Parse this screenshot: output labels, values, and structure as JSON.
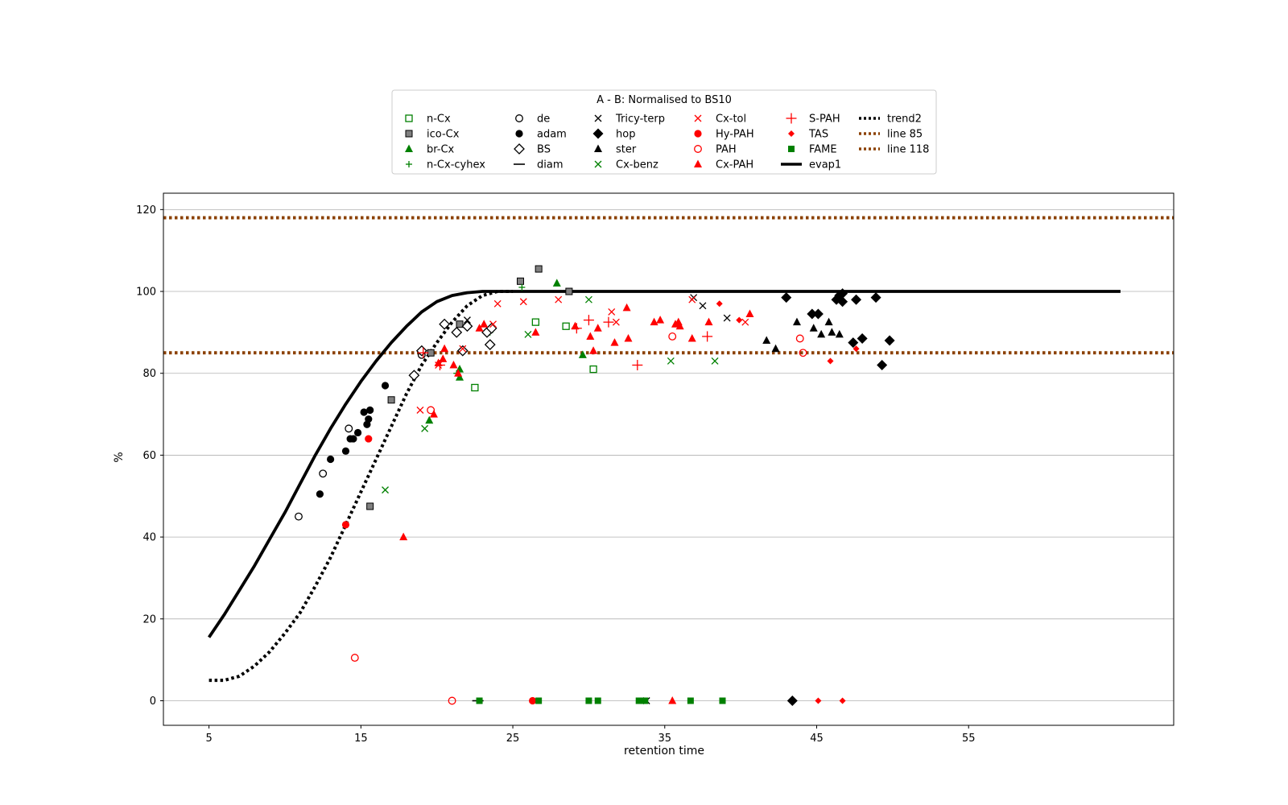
{
  "chart_data": {
    "type": "scatter",
    "title": "",
    "xlabel": "retention time",
    "ylabel": "%",
    "xlim": [
      2,
      68.5
    ],
    "ylim": [
      -6,
      124
    ],
    "x_ticks": [
      5,
      15,
      25,
      35,
      45,
      55
    ],
    "y_ticks": [
      0,
      20,
      40,
      60,
      80,
      100,
      120
    ],
    "y_grid": true,
    "legend": {
      "title": "A - B: Normalised to BS10",
      "placement": "above plot, centered",
      "columns": 6
    },
    "colors": {
      "red": "#ff0000",
      "green": "#008000",
      "black": "#000000",
      "gray": "#808080",
      "brown": "#8b4000"
    },
    "series": [
      {
        "name": "n-Cx",
        "marker": "square-open",
        "color": "#008000",
        "points": [
          [
            22.5,
            76.5
          ],
          [
            26.5,
            92.5
          ],
          [
            28.5,
            91.5
          ],
          [
            30.3,
            81
          ]
        ]
      },
      {
        "name": "ico-Cx",
        "marker": "square-gray",
        "color": "#808080",
        "points": [
          [
            15.6,
            47.5
          ],
          [
            17,
            73.5
          ],
          [
            19.6,
            85
          ],
          [
            21.5,
            92
          ],
          [
            25.5,
            102.5
          ],
          [
            26.7,
            105.5
          ],
          [
            28.7,
            100
          ]
        ]
      },
      {
        "name": "br-Cx",
        "marker": "triangle",
        "color": "#008000",
        "points": [
          [
            19.5,
            68.5
          ],
          [
            21.5,
            79
          ],
          [
            21.5,
            81
          ],
          [
            27.9,
            102
          ],
          [
            29.6,
            84.5
          ]
        ]
      },
      {
        "name": "n-Cx-cyhex",
        "marker": "plus",
        "color": "#008000",
        "points": [
          [
            21.3,
            80
          ],
          [
            23.5,
            90
          ],
          [
            25.6,
            101
          ]
        ]
      },
      {
        "name": "de",
        "marker": "circle-open",
        "color": "#000000",
        "points": [
          [
            10.9,
            45
          ],
          [
            12.5,
            55.5
          ],
          [
            14.2,
            66.5
          ],
          [
            19,
            84.5
          ]
        ]
      },
      {
        "name": "adam",
        "marker": "circle",
        "color": "#000000",
        "points": [
          [
            12.3,
            50.5
          ],
          [
            13,
            59
          ],
          [
            14,
            61
          ],
          [
            14.3,
            64
          ],
          [
            14.5,
            64
          ],
          [
            14.8,
            65.5
          ],
          [
            15.2,
            70.5
          ],
          [
            15.4,
            67.5
          ],
          [
            15.5,
            68.8
          ],
          [
            15.6,
            71
          ],
          [
            16.6,
            77
          ]
        ]
      },
      {
        "name": "BS",
        "marker": "diamond-open",
        "color": "#000000",
        "points": [
          [
            18.5,
            79.5
          ],
          [
            19,
            85.5
          ],
          [
            20.5,
            92
          ],
          [
            21.3,
            90
          ],
          [
            21.7,
            85.5
          ],
          [
            22,
            91.5
          ],
          [
            23.3,
            90
          ],
          [
            23.5,
            87
          ],
          [
            23.6,
            91
          ]
        ]
      },
      {
        "name": "diam",
        "marker": "hline",
        "color": "#000000",
        "points": [
          [
            22.7,
            0
          ]
        ]
      },
      {
        "name": "Tricy-terp",
        "marker": "x",
        "color": "#000000",
        "points": [
          [
            22,
            93
          ],
          [
            36.9,
            98.5
          ],
          [
            37.5,
            96.5
          ],
          [
            39.1,
            93.5
          ],
          [
            33.8,
            0
          ]
        ]
      },
      {
        "name": "hop",
        "marker": "diamond",
        "color": "#000000",
        "points": [
          [
            43,
            98.5
          ],
          [
            44.7,
            94.5
          ],
          [
            45.1,
            94.5
          ],
          [
            46.3,
            98
          ],
          [
            46.5,
            99
          ],
          [
            46.7,
            99.5
          ],
          [
            46.7,
            97.5
          ],
          [
            47.6,
            98
          ],
          [
            47.4,
            87.5
          ],
          [
            48,
            88.5
          ],
          [
            48.9,
            98.5
          ],
          [
            49.3,
            82
          ],
          [
            49.8,
            88
          ],
          [
            43.4,
            0
          ]
        ]
      },
      {
        "name": "ster",
        "marker": "triangle",
        "color": "#000000",
        "points": [
          [
            41.7,
            88
          ],
          [
            42.3,
            86
          ],
          [
            43.7,
            92.5
          ],
          [
            44.8,
            91
          ],
          [
            45.3,
            89.5
          ],
          [
            45.8,
            92.5
          ],
          [
            46,
            90
          ],
          [
            46.5,
            89.5
          ]
        ]
      },
      {
        "name": "Cx-benz",
        "marker": "x",
        "color": "#008000",
        "points": [
          [
            16.6,
            51.5
          ],
          [
            19.2,
            66.5
          ],
          [
            26,
            89.5
          ],
          [
            30,
            98
          ],
          [
            35.4,
            83
          ],
          [
            38.3,
            83
          ]
        ]
      },
      {
        "name": "Cx-tol",
        "marker": "x",
        "color": "#ff0000",
        "points": [
          [
            18.9,
            71
          ],
          [
            20.1,
            82
          ],
          [
            21.7,
            86
          ],
          [
            23.7,
            92
          ],
          [
            24,
            97
          ],
          [
            25.7,
            97.5
          ],
          [
            28,
            98
          ],
          [
            31.5,
            95
          ],
          [
            31.8,
            92.5
          ],
          [
            36.8,
            98
          ],
          [
            40.3,
            92.5
          ]
        ]
      },
      {
        "name": "Hy-PAH",
        "marker": "circle",
        "color": "#ff0000",
        "points": [
          [
            14,
            43
          ],
          [
            15.5,
            64
          ],
          [
            26.3,
            0
          ]
        ]
      },
      {
        "name": "PAH",
        "marker": "circle-open",
        "color": "#ff0000",
        "points": [
          [
            14.6,
            10.5
          ],
          [
            19.6,
            71
          ],
          [
            21,
            0
          ],
          [
            35.5,
            89
          ],
          [
            43.9,
            88.5
          ],
          [
            44.1,
            85
          ]
        ]
      },
      {
        "name": "Cx-PAH",
        "marker": "triangle",
        "color": "#ff0000",
        "points": [
          [
            17.8,
            40
          ],
          [
            19.8,
            70
          ],
          [
            20.1,
            82.5
          ],
          [
            20.4,
            83.5
          ],
          [
            20.5,
            86
          ],
          [
            21.1,
            82
          ],
          [
            21.4,
            80
          ],
          [
            22.8,
            91
          ],
          [
            23.1,
            92
          ],
          [
            26.5,
            90
          ],
          [
            29.1,
            91.5
          ],
          [
            30.1,
            89
          ],
          [
            30.3,
            85.5
          ],
          [
            30.6,
            91
          ],
          [
            31.7,
            87.5
          ],
          [
            32.5,
            96
          ],
          [
            32.6,
            88.5
          ],
          [
            34.3,
            92.5
          ],
          [
            34.7,
            93
          ],
          [
            35.7,
            92
          ],
          [
            35.9,
            92.5
          ],
          [
            36,
            91.5
          ],
          [
            36.8,
            88.5
          ],
          [
            37.9,
            92.5
          ],
          [
            40.6,
            94.5
          ],
          [
            35.5,
            0
          ]
        ]
      },
      {
        "name": "S-PAH",
        "marker": "plus-large",
        "color": "#ff0000",
        "points": [
          [
            19.1,
            85
          ],
          [
            20.2,
            82
          ],
          [
            29.2,
            91
          ],
          [
            30,
            93
          ],
          [
            31.3,
            92.5
          ],
          [
            33.2,
            82
          ],
          [
            37.8,
            89
          ]
        ]
      },
      {
        "name": "TAS",
        "marker": "diamond-small",
        "color": "#ff0000",
        "points": [
          [
            38.6,
            97
          ],
          [
            39.9,
            93
          ],
          [
            45.9,
            83
          ],
          [
            47.6,
            86
          ],
          [
            45.1,
            0
          ],
          [
            46.7,
            0
          ]
        ]
      },
      {
        "name": "FAME",
        "marker": "square",
        "color": "#008000",
        "points": [
          [
            22.8,
            0
          ],
          [
            26.7,
            0
          ],
          [
            30,
            0
          ],
          [
            30.6,
            0
          ],
          [
            33.3,
            0
          ],
          [
            33.7,
            0
          ],
          [
            36.7,
            0
          ],
          [
            38.8,
            0
          ]
        ]
      }
    ],
    "lines": [
      {
        "name": "trend2",
        "style": "dotted",
        "color": "#000000",
        "points": [
          [
            5,
            5
          ],
          [
            6,
            5
          ],
          [
            7,
            6
          ],
          [
            8,
            8.5
          ],
          [
            9,
            12
          ],
          [
            10,
            16.5
          ],
          [
            11,
            21.5
          ],
          [
            12,
            28
          ],
          [
            13,
            35
          ],
          [
            14,
            43
          ],
          [
            15,
            51
          ],
          [
            16,
            59
          ],
          [
            17,
            67
          ],
          [
            18,
            75
          ],
          [
            19,
            82
          ],
          [
            20,
            87.5
          ],
          [
            21,
            92.5
          ],
          [
            22,
            96.5
          ],
          [
            23,
            99
          ],
          [
            24,
            100
          ],
          [
            25,
            100
          ]
        ]
      },
      {
        "name": "line 85",
        "style": "dotted",
        "color": "#8b4000",
        "points": [
          [
            2,
            85
          ],
          [
            68.5,
            85
          ]
        ]
      },
      {
        "name": "line 118",
        "style": "dotted",
        "color": "#8b4000",
        "points": [
          [
            2,
            118
          ],
          [
            68.5,
            118
          ]
        ]
      },
      {
        "name": "evap1",
        "style": "solid",
        "color": "#000000",
        "points": [
          [
            5,
            15.5
          ],
          [
            6,
            21
          ],
          [
            7,
            27
          ],
          [
            8,
            33
          ],
          [
            9,
            39.5
          ],
          [
            10,
            46
          ],
          [
            11,
            53
          ],
          [
            12,
            60
          ],
          [
            13,
            66.5
          ],
          [
            14,
            72.5
          ],
          [
            15,
            78
          ],
          [
            16,
            83
          ],
          [
            17,
            87.5
          ],
          [
            18,
            91.5
          ],
          [
            19,
            95
          ],
          [
            20,
            97.5
          ],
          [
            21,
            99
          ],
          [
            22,
            99.7
          ],
          [
            23,
            100
          ],
          [
            25,
            100
          ],
          [
            30,
            100
          ],
          [
            40,
            100
          ],
          [
            55,
            100
          ],
          [
            65,
            100
          ]
        ]
      }
    ],
    "legend_entries": [
      {
        "name": "n-Cx",
        "marker": "square-open",
        "color": "#008000"
      },
      {
        "name": "ico-Cx",
        "marker": "square-gray",
        "color": "#808080"
      },
      {
        "name": "br-Cx",
        "marker": "triangle",
        "color": "#008000"
      },
      {
        "name": "n-Cx-cyhex",
        "marker": "plus",
        "color": "#008000"
      },
      {
        "name": "de",
        "marker": "circle-open",
        "color": "#000000"
      },
      {
        "name": "adam",
        "marker": "circle",
        "color": "#000000"
      },
      {
        "name": "BS",
        "marker": "diamond-open",
        "color": "#000000"
      },
      {
        "name": "diam",
        "marker": "hline",
        "color": "#000000"
      },
      {
        "name": "Tricy-terp",
        "marker": "x",
        "color": "#000000"
      },
      {
        "name": "hop",
        "marker": "diamond",
        "color": "#000000"
      },
      {
        "name": "ster",
        "marker": "triangle",
        "color": "#000000"
      },
      {
        "name": "Cx-benz",
        "marker": "x",
        "color": "#008000"
      },
      {
        "name": "Cx-tol",
        "marker": "x",
        "color": "#ff0000"
      },
      {
        "name": "Hy-PAH",
        "marker": "circle",
        "color": "#ff0000"
      },
      {
        "name": "PAH",
        "marker": "circle-open",
        "color": "#ff0000"
      },
      {
        "name": "Cx-PAH",
        "marker": "triangle",
        "color": "#ff0000"
      },
      {
        "name": "S-PAH",
        "marker": "plus-large",
        "color": "#ff0000"
      },
      {
        "name": "TAS",
        "marker": "diamond-small",
        "color": "#ff0000"
      },
      {
        "name": "FAME",
        "marker": "square",
        "color": "#008000"
      },
      {
        "name": "evap1",
        "marker": "solid-line",
        "color": "#000000"
      },
      {
        "name": "trend2",
        "marker": "dotted-line",
        "color": "#000000"
      },
      {
        "name": "line 85",
        "marker": "dotted-line",
        "color": "#8b4000"
      },
      {
        "name": "line 118",
        "marker": "dotted-line",
        "color": "#8b4000"
      }
    ]
  }
}
